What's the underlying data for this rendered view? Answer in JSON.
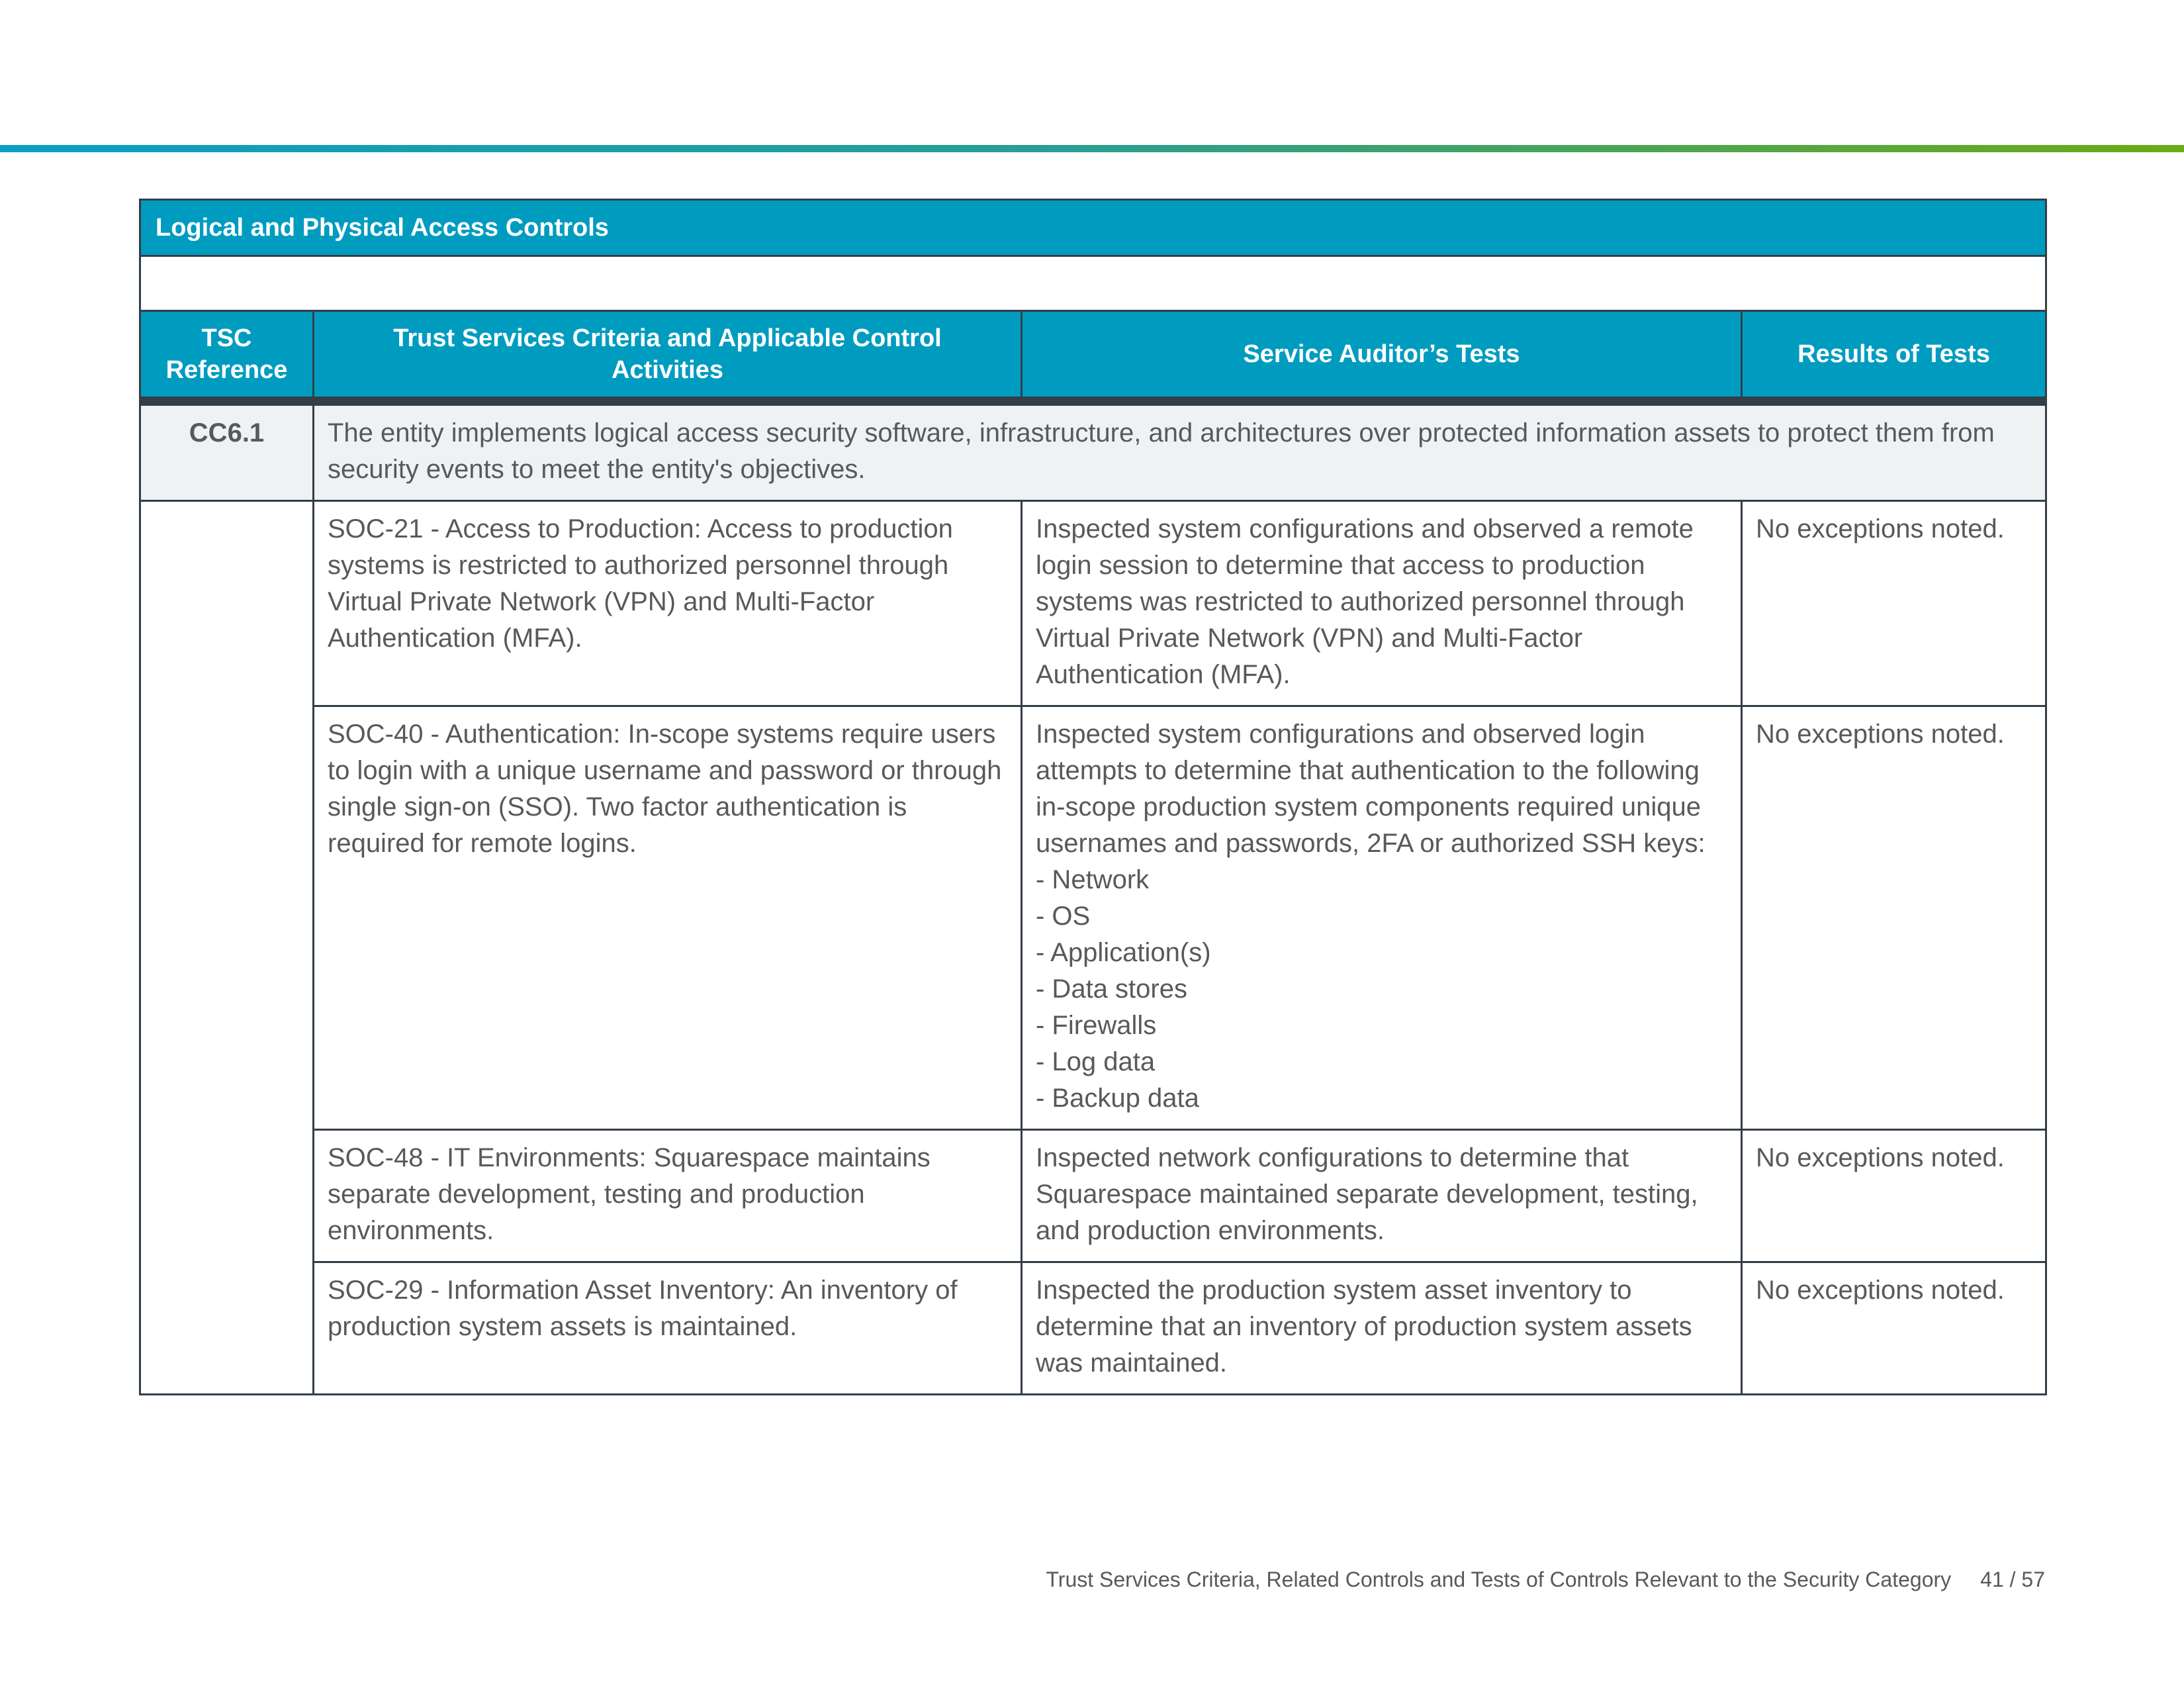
{
  "section_title": "Logical and Physical Access Controls",
  "headers": [
    "TSC Reference",
    "Trust Services Criteria and Applicable Control Activities",
    "Service Auditor’s Tests",
    "Results of Tests"
  ],
  "criterion": {
    "ref": "CC6.1",
    "text": "The entity implements logical access security software, infrastructure, and architectures over protected information assets to protect them from security events to meet the entity's objectives."
  },
  "rows": [
    {
      "control": "SOC-21 - Access to Production: Access to production systems is restricted to authorized personnel through Virtual Private Network (VPN) and Multi-Factor Authentication (MFA).",
      "test": "Inspected system configurations and observed a remote login session to determine that access to production systems was restricted to authorized personnel through Virtual Private Network (VPN) and Multi-Factor Authentication (MFA).",
      "test_items": [],
      "result": "No exceptions noted."
    },
    {
      "control": "SOC-40 - Authentication: In-scope systems require users to login with a unique username and password or through single sign-on (SSO). Two factor authentication is required for remote logins.",
      "test": "Inspected system configurations and observed login attempts to determine that authentication to the following in-scope production system components required unique usernames and passwords, 2FA or authorized SSH keys:",
      "test_items": [
        "- Network",
        "- OS",
        "- Application(s)",
        "- Data stores",
        "- Firewalls",
        "- Log data",
        "- Backup data"
      ],
      "result": "No exceptions noted."
    },
    {
      "control": "SOC-48 - IT Environments: Squarespace maintains separate development, testing and production environments.",
      "test": "Inspected network configurations to determine that Squarespace maintained separate development, testing, and production environments.",
      "test_items": [],
      "result": "No exceptions noted."
    },
    {
      "control": "SOC-29 - Information Asset Inventory: An inventory of production system assets is maintained.",
      "test": "Inspected the production system asset inventory to determine that an inventory of production system assets was maintained.",
      "test_items": [],
      "result": "No exceptions noted."
    }
  ],
  "footer": {
    "text": "Trust Services Criteria, Related Controls and Tests of Controls Relevant to the Security Category",
    "page": "41 / 57"
  },
  "colors": {
    "header": "#009cc0",
    "border": "#333e48",
    "criterion_bg": "#eff2f3",
    "text": "#58595b"
  }
}
